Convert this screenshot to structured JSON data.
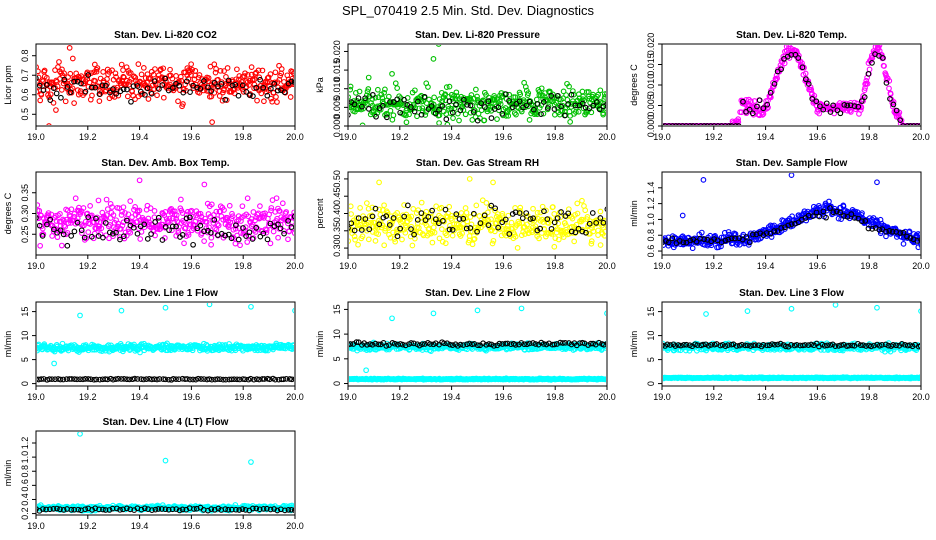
{
  "figure_title": "SPL_070419  2.5 Min. Std. Dev. Diagnostics",
  "x_ticks": [
    "19.0",
    "19.2",
    "19.4",
    "19.6",
    "19.8",
    "20.0"
  ],
  "chart_data": [
    {
      "type": "scatter",
      "title": "Stan. Dev. Li-820 CO2",
      "ylabel": "Licor ppm",
      "color": "#ff0000",
      "reference_color": "#000000",
      "xlim": [
        19.0,
        20.0
      ],
      "ylim": [
        0.44,
        0.86
      ],
      "yticks": [
        "0.5",
        "0.6",
        "0.7",
        "0.8"
      ],
      "pattern": "noisy band",
      "series_params": {
        "base": 0.66,
        "spread": 0.09,
        "outliers": [
          [
            19.05,
            0.44
          ],
          [
            19.13,
            0.84
          ],
          [
            19.68,
            0.46
          ]
        ]
      },
      "reference_params": {
        "base": 0.64,
        "spread": 0.06
      }
    },
    {
      "type": "scatter",
      "title": "Stan. Dev. Li-820 Pressure",
      "ylabel": "kPa",
      "color": "#00c000",
      "reference_color": "#000000",
      "xlim": [
        19.0,
        20.0
      ],
      "ylim": [
        0.0,
        0.022
      ],
      "yticks": [
        "0.000",
        "0.005",
        "0.010",
        "0.015",
        "0.020"
      ],
      "pattern": "noisy band",
      "series_params": {
        "base": 0.006,
        "spread": 0.004,
        "outliers": [
          [
            19.17,
            0.014
          ],
          [
            19.33,
            0.018
          ],
          [
            19.35,
            0.022
          ],
          [
            19.08,
            0.013
          ]
        ]
      },
      "reference_params": {
        "base": 0.005,
        "spread": 0.003
      }
    },
    {
      "type": "scatter",
      "title": "Stan. Dev. Li-820 Temp.",
      "ylabel": "degrees C",
      "color": "#ff00ff",
      "reference_color": "#000000",
      "xlim": [
        19.0,
        20.0
      ],
      "ylim": [
        0.0,
        0.02
      ],
      "yticks": [
        "0.000",
        "0.005",
        "0.010",
        "0.015",
        "0.020"
      ],
      "pattern": "two peaks",
      "series_params": {
        "peaks": [
          [
            19.5,
            0.0185
          ],
          [
            19.83,
            0.019
          ]
        ],
        "zero_until": 19.27,
        "zero_after": 19.93
      },
      "reference_params": {
        "peaks": [
          [
            19.5,
            0.018
          ],
          [
            19.83,
            0.018
          ]
        ]
      }
    },
    {
      "type": "scatter",
      "title": "Stan. Dev. Amb. Box Temp.",
      "ylabel": "degrees C",
      "color": "#ff00ff",
      "reference_color": "#000000",
      "xlim": [
        19.0,
        20.0
      ],
      "ylim": [
        0.2,
        0.4
      ],
      "yticks": [
        "0.25",
        "0.30",
        "0.35"
      ],
      "pattern": "noisy band",
      "series_params": {
        "base": 0.28,
        "spread": 0.045,
        "outliers": [
          [
            19.4,
            0.38
          ],
          [
            19.65,
            0.37
          ]
        ]
      },
      "reference_params": {
        "base": 0.26,
        "spread": 0.035
      }
    },
    {
      "type": "scatter",
      "title": "Stan. Dev. Gas Stream RH",
      "ylabel": "percent",
      "color": "#ffff00",
      "reference_color": "#000000",
      "xlim": [
        19.0,
        20.0
      ],
      "ylim": [
        0.28,
        0.52
      ],
      "yticks": [
        "0.30",
        "0.35",
        "0.40",
        "0.45",
        "0.50"
      ],
      "pattern": "noisy band",
      "series_params": {
        "base": 0.37,
        "spread": 0.05,
        "outliers": [
          [
            19.12,
            0.49
          ],
          [
            19.47,
            0.5
          ],
          [
            19.56,
            0.49
          ]
        ]
      },
      "reference_params": {
        "base": 0.38,
        "spread": 0.04
      }
    },
    {
      "type": "scatter",
      "title": "Stan. Dev. Sample Flow",
      "ylabel": "ml/min",
      "color": "#0000ff",
      "reference_color": "#000000",
      "xlim": [
        19.0,
        20.0
      ],
      "ylim": [
        0.55,
        1.6
      ],
      "yticks": [
        "0.6",
        "0.8",
        "1.0",
        "1.2",
        "1.4"
      ],
      "pattern": "hump",
      "series_params": {
        "base": 0.72,
        "peak": [
          19.65,
          1.12
        ],
        "spread": 0.08,
        "outliers": [
          [
            19.08,
            1.05
          ],
          [
            19.16,
            1.5
          ],
          [
            19.5,
            1.56
          ],
          [
            19.83,
            1.47
          ]
        ]
      },
      "reference_params": {
        "base": 0.72,
        "peak": [
          19.65,
          1.08
        ],
        "spread": 0.05
      }
    },
    {
      "type": "scatter",
      "title": "Stan. Dev. Line 1 Flow",
      "ylabel": "ml/min",
      "color": "#00ffff",
      "reference_color": "#000000",
      "xlim": [
        19.0,
        20.0
      ],
      "ylim": [
        -0.5,
        17
      ],
      "yticks": [
        "0",
        "5",
        "10",
        "15"
      ],
      "pattern": "two bands",
      "series_params": {
        "base": 7.5,
        "spread": 0.7,
        "outliers": [
          [
            19.07,
            4.2
          ],
          [
            19.17,
            14.2
          ],
          [
            19.33,
            15.2
          ],
          [
            19.5,
            15.8
          ],
          [
            19.67,
            16.5
          ],
          [
            19.83,
            16.0
          ],
          [
            20.0,
            15.2
          ]
        ]
      },
      "reference_params": {
        "base": 0.9,
        "spread": 0.12
      }
    },
    {
      "type": "scatter",
      "title": "Stan. Dev. Line 2 Flow",
      "ylabel": "ml/min",
      "color": "#00ffff",
      "reference_color": "#000000",
      "xlim": [
        19.0,
        20.0
      ],
      "ylim": [
        -0.5,
        16.5
      ],
      "yticks": [
        "0",
        "5",
        "10",
        "15"
      ],
      "pattern": "two bands",
      "series_params": {
        "base": 7.4,
        "spread": 0.6,
        "low_band": 0.9,
        "outliers": [
          [
            19.07,
            2.7
          ],
          [
            19.17,
            13.2
          ],
          [
            19.33,
            14.2
          ],
          [
            19.5,
            14.8
          ],
          [
            19.67,
            15.2
          ],
          [
            20.0,
            14.2
          ]
        ]
      },
      "reference_params": {
        "base": 8.0,
        "spread": 0.3
      }
    },
    {
      "type": "scatter",
      "title": "Stan. Dev. Line 3 Flow",
      "ylabel": "ml/min",
      "color": "#00ffff",
      "reference_color": "#000000",
      "xlim": [
        19.0,
        20.0
      ],
      "ylim": [
        -0.5,
        17
      ],
      "yticks": [
        "0",
        "5",
        "10",
        "15"
      ],
      "pattern": "two bands",
      "series_params": {
        "base": 7.6,
        "spread": 0.7,
        "low_band": 1.2,
        "outliers": [
          [
            19.17,
            14.5
          ],
          [
            19.33,
            15.1
          ],
          [
            19.5,
            15.6
          ],
          [
            19.67,
            16.4
          ],
          [
            19.83,
            15.8
          ],
          [
            20.0,
            15.1
          ]
        ]
      },
      "reference_params": {
        "base": 8.0,
        "spread": 0.3
      }
    },
    {
      "type": "scatter",
      "title": "Stan. Dev. Line 4 (LT) Flow",
      "ylabel": "ml/min",
      "color": "#00ffff",
      "reference_color": "#000000",
      "xlim": [
        19.0,
        20.0
      ],
      "ylim": [
        0.18,
        1.37
      ],
      "yticks": [
        "0.2",
        "0.4",
        "0.6",
        "0.8",
        "1.0",
        "1.2"
      ],
      "pattern": "noisy band",
      "series_params": {
        "base": 0.28,
        "spread": 0.03,
        "outliers": [
          [
            19.17,
            1.33
          ],
          [
            19.5,
            0.95
          ],
          [
            19.83,
            0.93
          ]
        ]
      },
      "reference_params": {
        "base": 0.26,
        "spread": 0.02
      }
    }
  ]
}
